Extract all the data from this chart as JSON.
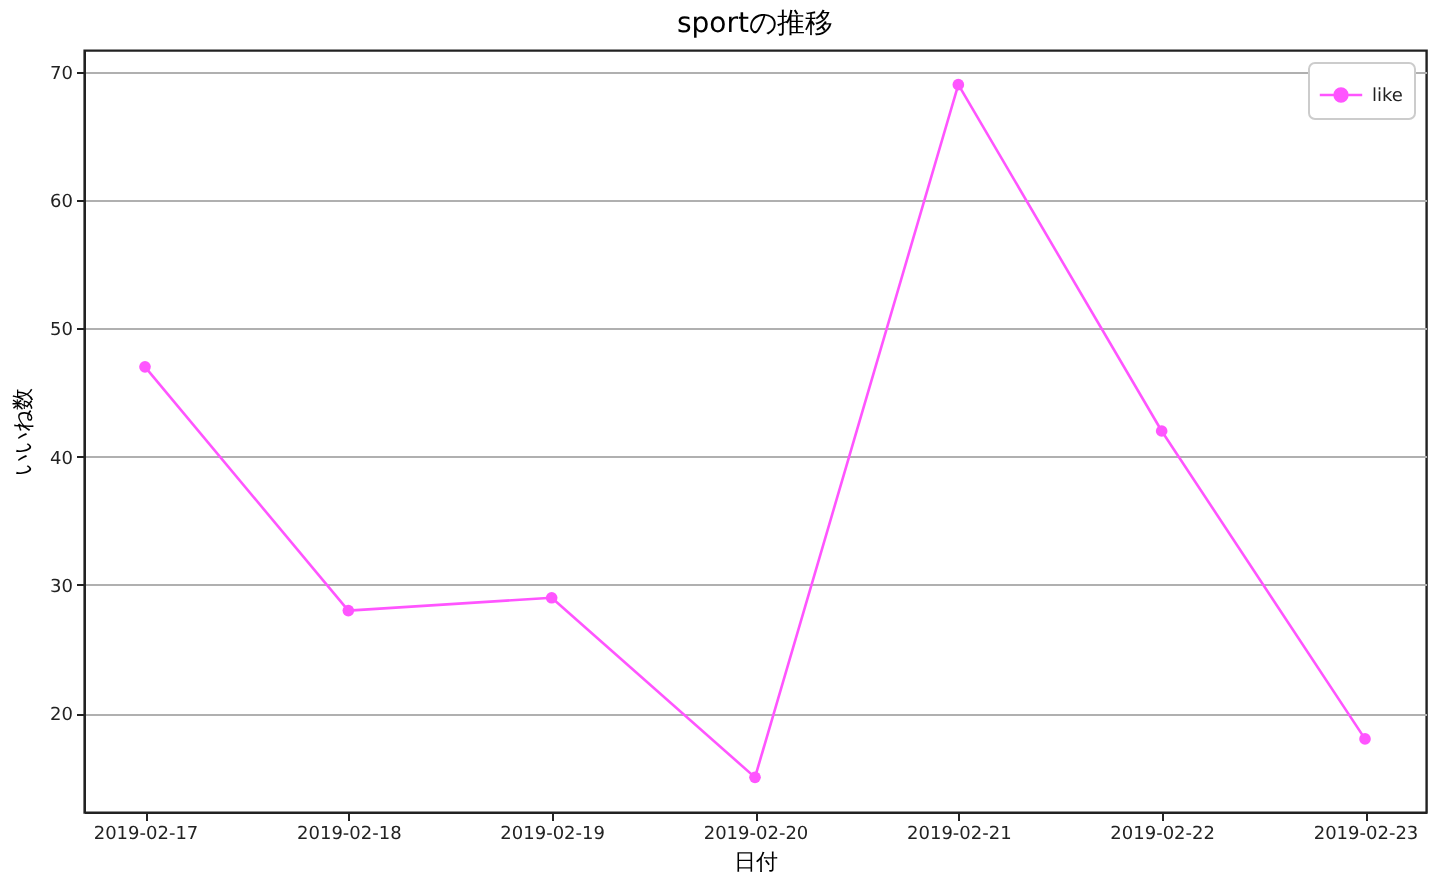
{
  "chart_data": {
    "type": "line",
    "title": "sportの推移",
    "xlabel": "日付",
    "ylabel": "いいね数",
    "categories": [
      "2019-02-17",
      "2019-02-18",
      "2019-02-19",
      "2019-02-20",
      "2019-02-21",
      "2019-02-22",
      "2019-02-23"
    ],
    "series": [
      {
        "name": "like",
        "color": "#ff55ff",
        "values": [
          47,
          28,
          29,
          15,
          69,
          42,
          18
        ]
      }
    ],
    "ylim": [
      12.3,
      71.7
    ],
    "yticks": [
      20,
      30,
      40,
      50,
      60,
      70
    ],
    "grid": "y",
    "legend": "top right",
    "marker": "circle",
    "line_style": "solid"
  }
}
